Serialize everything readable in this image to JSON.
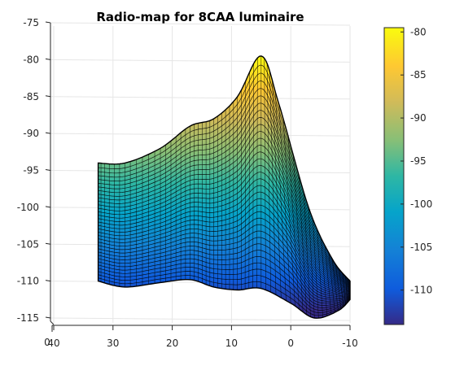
{
  "chart_data": {
    "type": "surface",
    "title": "Radio-map for 8CAA luminaire",
    "z_ticks": [
      "-75",
      "-80",
      "-85",
      "-90",
      "-95",
      "-100",
      "-105",
      "-110",
      "-115"
    ],
    "x_ticks": [
      "40",
      "30",
      "20",
      "10",
      "0",
      "-10"
    ],
    "x_origin_label": "0",
    "x_range": [
      40,
      -10
    ],
    "z_range": [
      -115,
      -75
    ],
    "colorbar": {
      "colormap": "parula",
      "range": [
        -114,
        -79.5
      ],
      "ticks": [
        "-80",
        "-85",
        "-90",
        "-95",
        "-100",
        "-105",
        "-110"
      ]
    },
    "surface_profiles": {
      "note_x_units": "x axis data units",
      "back_edge": [
        {
          "x": 32.5,
          "z": -94
        },
        {
          "x": 28,
          "z": -94
        },
        {
          "x": 22,
          "z": -92
        },
        {
          "x": 17,
          "z": -89
        },
        {
          "x": 13,
          "z": -88
        },
        {
          "x": 9,
          "z": -85
        },
        {
          "x": 5,
          "z": -79.5
        },
        {
          "x": 2,
          "z": -86
        },
        {
          "x": -3,
          "z": -100
        },
        {
          "x": -7,
          "z": -107
        },
        {
          "x": -10,
          "z": -110
        }
      ],
      "front_edge": [
        {
          "x": 32.5,
          "z": -110
        },
        {
          "x": 28,
          "z": -110.8
        },
        {
          "x": 22,
          "z": -110.2
        },
        {
          "x": 17,
          "z": -109.8
        },
        {
          "x": 13,
          "z": -110.8
        },
        {
          "x": 9,
          "z": -111.2
        },
        {
          "x": 5,
          "z": -111
        },
        {
          "x": 0,
          "z": -113
        },
        {
          "x": -4,
          "z": -115
        },
        {
          "x": -8,
          "z": -114
        },
        {
          "x": -10,
          "z": -112.5
        }
      ]
    },
    "grid": true
  }
}
